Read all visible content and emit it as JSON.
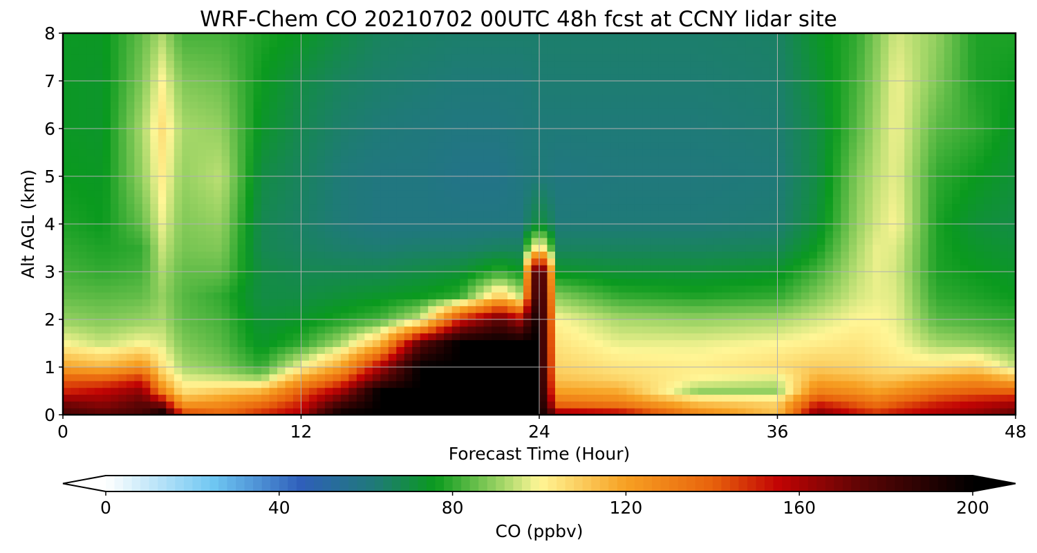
{
  "chart_data": {
    "type": "heatmap",
    "title": "WRF-Chem CO  20210702 00UTC 48h fcst at CCNY lidar site",
    "xlabel": "Forecast Time (Hour)",
    "ylabel": "Alt AGL (km)",
    "xlim": [
      0,
      48
    ],
    "ylim": [
      0,
      8
    ],
    "x_ticks": [
      0,
      12,
      24,
      36,
      48
    ],
    "y_ticks": [
      0,
      1,
      2,
      3,
      4,
      5,
      6,
      7,
      8
    ],
    "grid": true,
    "colorbar": {
      "label": "CO  (ppbv)",
      "range": [
        0,
        200
      ],
      "ticks": [
        0,
        40,
        80,
        120,
        160,
        200
      ],
      "extend": "both",
      "orientation": "horizontal",
      "stops": [
        {
          "v": 0,
          "c": "#ffffff"
        },
        {
          "v": 25,
          "c": "#6ec6f2"
        },
        {
          "v": 45,
          "c": "#2f5fba"
        },
        {
          "v": 62,
          "c": "#1f7a78"
        },
        {
          "v": 76,
          "c": "#0a9a1e"
        },
        {
          "v": 92,
          "c": "#a8d86a"
        },
        {
          "v": 100,
          "c": "#fff696"
        },
        {
          "v": 120,
          "c": "#f7a022"
        },
        {
          "v": 140,
          "c": "#e8620c"
        },
        {
          "v": 155,
          "c": "#c20404"
        },
        {
          "v": 175,
          "c": "#5a0505"
        },
        {
          "v": 200,
          "c": "#000000"
        }
      ]
    },
    "x_hours": [
      0,
      2,
      4,
      5,
      6,
      8,
      10,
      12,
      14,
      16,
      18,
      20,
      22,
      23,
      24,
      25,
      28,
      32,
      36,
      38,
      40,
      41,
      42,
      44,
      46,
      48
    ],
    "z_km": [
      0,
      0.25,
      0.5,
      0.75,
      1,
      1.5,
      2,
      2.5,
      3,
      3.5,
      4,
      5,
      6,
      7,
      8
    ],
    "co_ppbv": [
      [
        180,
        170,
        150,
        140,
        120,
        100,
        90,
        85,
        82,
        80,
        78,
        76,
        75,
        75,
        75
      ],
      [
        175,
        165,
        155,
        140,
        115,
        95,
        88,
        84,
        80,
        78,
        76,
        75,
        74,
        74,
        75
      ],
      [
        180,
        175,
        165,
        150,
        125,
        100,
        90,
        85,
        82,
        80,
        85,
        90,
        92,
        88,
        85
      ],
      [
        200,
        165,
        130,
        115,
        105,
        97,
        92,
        90,
        92,
        95,
        98,
        102,
        105,
        100,
        92
      ],
      [
        150,
        120,
        105,
        98,
        92,
        88,
        85,
        84,
        85,
        87,
        88,
        90,
        92,
        88,
        82
      ],
      [
        140,
        125,
        110,
        96,
        88,
        84,
        82,
        80,
        85,
        88,
        90,
        94,
        90,
        86,
        82
      ],
      [
        150,
        135,
        115,
        92,
        80,
        74,
        72,
        70,
        70,
        68,
        68,
        70,
        74,
        76,
        78
      ],
      [
        160,
        150,
        140,
        120,
        100,
        80,
        74,
        70,
        68,
        66,
        65,
        66,
        68,
        70,
        75
      ],
      [
        200,
        180,
        160,
        140,
        120,
        92,
        78,
        72,
        68,
        64,
        62,
        62,
        64,
        66,
        70
      ],
      [
        200,
        200,
        200,
        175,
        160,
        115,
        82,
        74,
        68,
        63,
        60,
        60,
        62,
        64,
        66
      ],
      [
        200,
        200,
        200,
        200,
        200,
        175,
        95,
        76,
        70,
        64,
        60,
        60,
        61,
        63,
        65
      ],
      [
        200,
        200,
        200,
        200,
        200,
        200,
        150,
        80,
        72,
        64,
        60,
        58,
        60,
        62,
        64
      ],
      [
        200,
        200,
        200,
        200,
        200,
        200,
        175,
        110,
        80,
        66,
        60,
        58,
        60,
        62,
        64
      ],
      [
        200,
        200,
        200,
        200,
        200,
        200,
        160,
        95,
        76,
        66,
        60,
        60,
        61,
        62,
        64
      ],
      [
        200,
        200,
        200,
        200,
        200,
        200,
        200,
        200,
        200,
        110,
        72,
        62,
        62,
        63,
        64
      ],
      [
        165,
        135,
        120,
        112,
        108,
        104,
        100,
        88,
        74,
        66,
        62,
        60,
        62,
        63,
        64
      ],
      [
        160,
        130,
        118,
        108,
        104,
        98,
        92,
        80,
        72,
        66,
        62,
        61,
        62,
        63,
        64
      ],
      [
        130,
        112,
        90,
        100,
        102,
        98,
        90,
        78,
        72,
        66,
        62,
        61,
        62,
        63,
        64
      ],
      [
        112,
        108,
        90,
        96,
        106,
        100,
        92,
        80,
        74,
        67,
        63,
        62,
        63,
        64,
        65
      ],
      [
        170,
        150,
        130,
        118,
        110,
        102,
        96,
        88,
        82,
        76,
        72,
        70,
        70,
        72,
        74
      ],
      [
        155,
        140,
        125,
        115,
        108,
        104,
        100,
        96,
        94,
        92,
        90,
        88,
        84,
        82,
        80
      ],
      [
        150,
        135,
        120,
        112,
        106,
        102,
        100,
        98,
        98,
        98,
        96,
        94,
        92,
        90,
        88
      ],
      [
        155,
        140,
        125,
        112,
        104,
        100,
        98,
        97,
        96,
        97,
        100,
        98,
        99,
        99,
        96
      ],
      [
        160,
        150,
        135,
        120,
        104,
        92,
        84,
        80,
        78,
        78,
        78,
        80,
        84,
        88,
        90
      ],
      [
        165,
        155,
        140,
        125,
        108,
        90,
        82,
        78,
        76,
        74,
        72,
        76,
        80,
        78,
        78
      ],
      [
        175,
        160,
        140,
        115,
        95,
        86,
        80,
        76,
        74,
        72,
        70,
        72,
        74,
        76,
        78
      ]
    ]
  }
}
